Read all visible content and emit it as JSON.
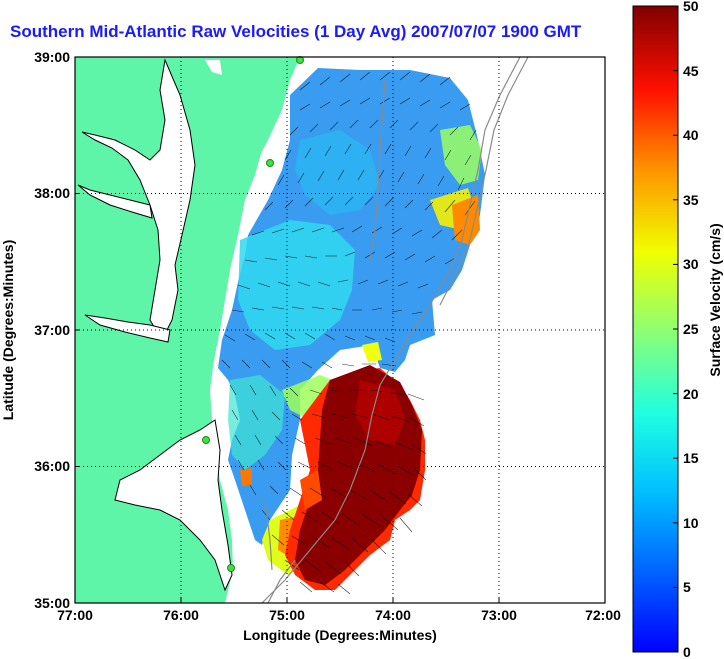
{
  "title": "Southern Mid-Atlantic Raw Velocities (1 Day Avg) 2007/07/07 1900 GMT",
  "map": {
    "xlabel": "Longitude (Degrees:Minutes)",
    "ylabel": "Latitude (Degrees:Minutes)",
    "x_ticks": [
      "77:00",
      "76:00",
      "75:00",
      "74:00",
      "73:00",
      "72:00"
    ],
    "y_ticks": [
      "39:00",
      "38:00",
      "37:00",
      "36:00",
      "35:00"
    ],
    "lon_range": [
      -77,
      -72
    ],
    "lat_range": [
      35,
      39
    ],
    "land_color": "#5ff5a8",
    "grid": "dotted"
  },
  "colorbar": {
    "label": "Surface Velocity (cm/s)",
    "ticks": [
      "50",
      "45",
      "40",
      "35",
      "30",
      "25",
      "20",
      "15",
      "10",
      "5",
      "0"
    ],
    "range": [
      0,
      50
    ],
    "colormap": "jet"
  },
  "stations": [
    {
      "lon": -74.88,
      "lat": 38.95
    },
    {
      "lon": -75.1,
      "lat": 38.22
    },
    {
      "lon": -75.73,
      "lat": 36.19
    },
    {
      "lon": -75.47,
      "lat": 35.26
    }
  ]
}
